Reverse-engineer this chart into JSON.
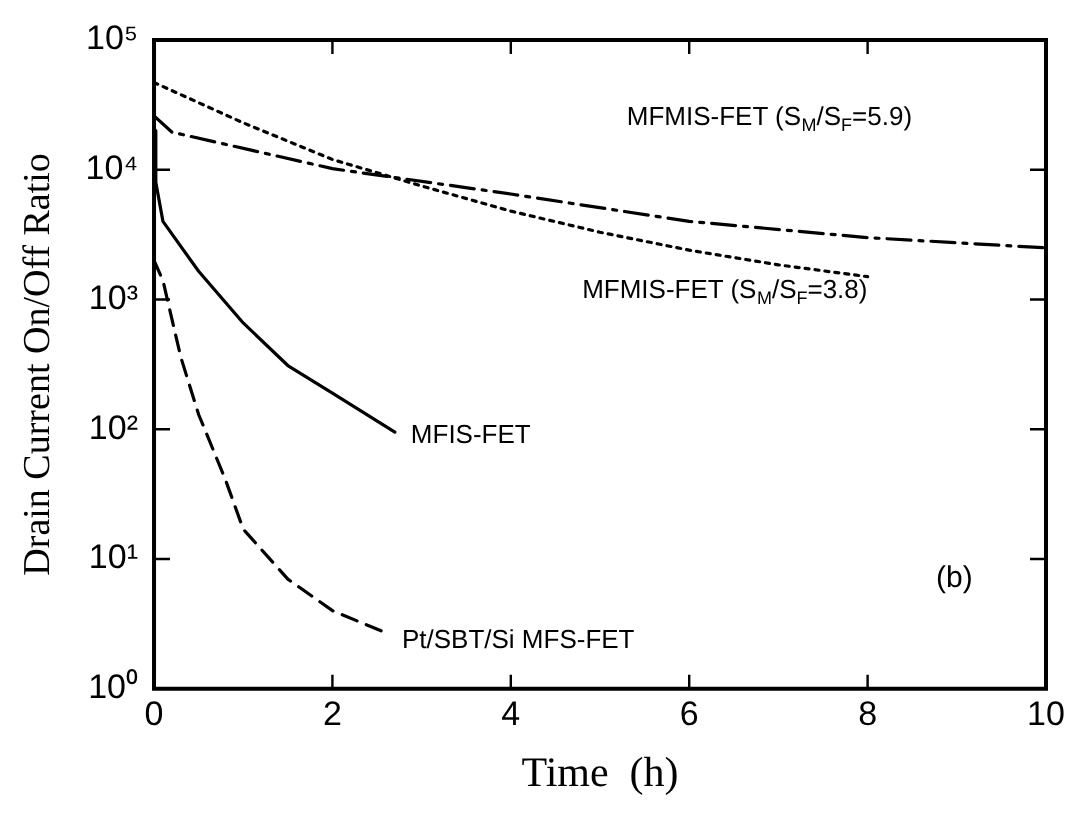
{
  "chart_data": {
    "type": "line",
    "xlabel": "Time  (h)",
    "ylabel": "Drain Current On/Off Ratio",
    "log": "y",
    "xlim": [
      0,
      10
    ],
    "xticks": [
      0,
      2,
      4,
      6,
      8,
      10
    ],
    "ylim": [
      1,
      100000
    ],
    "yticks": [
      {
        "value": 1,
        "label": "10⁰"
      },
      {
        "value": 10,
        "label": "10¹"
      },
      {
        "value": 100,
        "label": "10²"
      },
      {
        "value": 1000,
        "label": "10³"
      },
      {
        "value": 10000,
        "label": "10⁴"
      },
      {
        "value": 100000,
        "label": "10⁵"
      }
    ],
    "grid": false,
    "legend": false,
    "marker": "none",
    "annotations": [
      "(b)"
    ],
    "series": [
      {
        "name": "MFMIS-FET (S$_{M}$/S$_{F}$=5.9)",
        "color": "#000000",
        "line_style": "dashdot",
        "x": [
          0,
          0.2,
          2,
          4,
          6,
          8,
          10
        ],
        "values": [
          26000,
          19500,
          10200,
          6500,
          4000,
          3000,
          2500
        ]
      },
      {
        "name": "MFMIS-FET (S$_{M}$/S$_{F}$=3.8)",
        "color": "#000000",
        "line_style": "dotted",
        "x": [
          0,
          1,
          2,
          3,
          4,
          5,
          6,
          7,
          8
        ],
        "values": [
          47000,
          23000,
          12000,
          7500,
          4800,
          3300,
          2400,
          1850,
          1500
        ]
      },
      {
        "name": "MFIS-FET",
        "color": "#000000",
        "line_style": "solid",
        "x": [
          0,
          0.02,
          0.1,
          0.5,
          1,
          1.5,
          2,
          2.7
        ],
        "values": [
          20000,
          8000,
          4000,
          1650,
          660,
          310,
          190,
          95
        ]
      },
      {
        "name": "Pt/SBT/Si MFS-FET",
        "color": "#000000",
        "line_style": "dashed",
        "x": [
          0,
          0.1,
          0.3,
          0.5,
          0.8,
          1,
          1.5,
          2,
          2.6
        ],
        "values": [
          2000,
          1400,
          360,
          130,
          41,
          17,
          7,
          4,
          2.7
        ]
      }
    ]
  }
}
